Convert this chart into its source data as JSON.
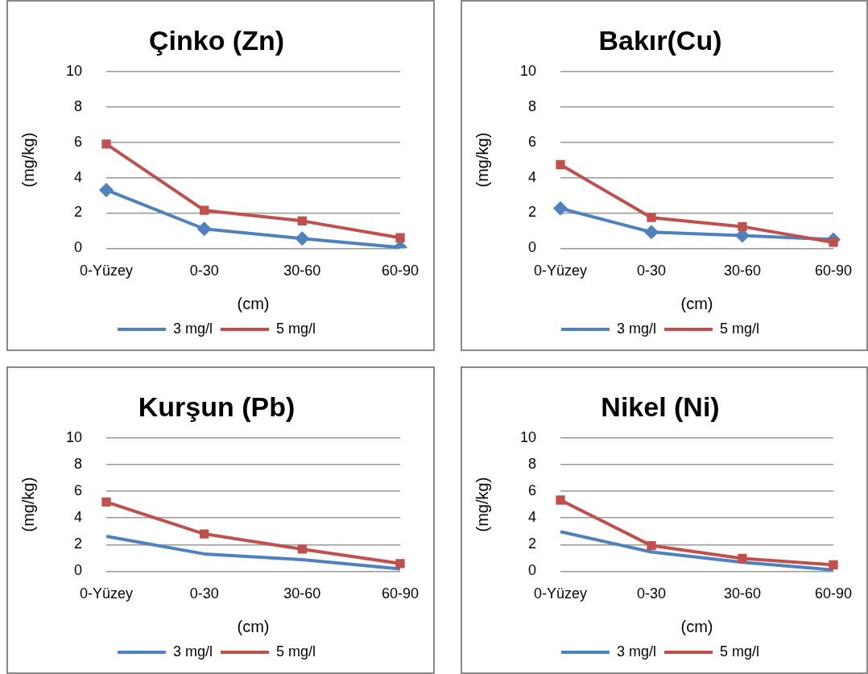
{
  "chart_data": [
    {
      "type": "line",
      "title": "Çinko (Zn)",
      "xlabel": "(cm)",
      "ylabel": "(mg/kg)",
      "categories": [
        "0-Yüzey",
        "0-30",
        "30-60",
        "60-90"
      ],
      "ylim": [
        0,
        10
      ],
      "yticks": [
        0,
        2,
        4,
        6,
        8,
        10
      ],
      "grid": "y",
      "legend": "bottom",
      "series": [
        {
          "name": "3 mg/l",
          "color": "#4f81bd",
          "marker": "diamond",
          "values": [
            3.3,
            1.1,
            0.55,
            0.05
          ]
        },
        {
          "name": "5 mg/l",
          "color": "#c0504d",
          "marker": "square",
          "values": [
            5.9,
            2.15,
            1.55,
            0.6
          ]
        }
      ]
    },
    {
      "type": "line",
      "title": "Bakır(Cu)",
      "xlabel": "(cm)",
      "ylabel": "(mg/kg)",
      "categories": [
        "0-Yüzey",
        "0-30",
        "30-60",
        "60-90"
      ],
      "ylim": [
        0,
        10
      ],
      "yticks": [
        0,
        2,
        4,
        6,
        8,
        10
      ],
      "grid": "y",
      "legend": "bottom",
      "series": [
        {
          "name": "3 mg/l",
          "color": "#4f81bd",
          "marker": "diamond",
          "values": [
            2.26,
            0.92,
            0.72,
            0.5
          ]
        },
        {
          "name": "5 mg/l",
          "color": "#c0504d",
          "marker": "square",
          "values": [
            4.73,
            1.74,
            1.23,
            0.34
          ]
        }
      ]
    },
    {
      "type": "line",
      "title": "Kurşun (Pb)",
      "xlabel": "(cm)",
      "ylabel": "(mg/kg)",
      "categories": [
        "0-Yüzey",
        "0-30",
        "30-60",
        "60-90"
      ],
      "ylim": [
        0,
        10
      ],
      "yticks": [
        0,
        2,
        4,
        6,
        8,
        10
      ],
      "grid": "y",
      "legend": "bottom",
      "series": [
        {
          "name": "3 mg/l",
          "color": "#4f81bd",
          "marker": "none",
          "values": [
            2.62,
            1.3,
            0.87,
            0.17
          ]
        },
        {
          "name": "5 mg/l",
          "color": "#c0504d",
          "marker": "square",
          "values": [
            5.2,
            2.8,
            1.66,
            0.58
          ]
        }
      ]
    },
    {
      "type": "line",
      "title": "Nikel (Ni)",
      "xlabel": "(cm)",
      "ylabel": "(mg/kg)",
      "categories": [
        "0-Yüzey",
        "0-30",
        "30-60",
        "60-90"
      ],
      "ylim": [
        0,
        10
      ],
      "yticks": [
        0,
        2,
        4,
        6,
        8,
        10
      ],
      "grid": "y",
      "legend": "bottom",
      "series": [
        {
          "name": "3 mg/l",
          "color": "#4f81bd",
          "marker": "none",
          "values": [
            2.97,
            1.44,
            0.67,
            0.1
          ]
        },
        {
          "name": "5 mg/l",
          "color": "#c0504d",
          "marker": "square",
          "values": [
            5.34,
            1.92,
            0.96,
            0.48
          ]
        }
      ]
    }
  ]
}
